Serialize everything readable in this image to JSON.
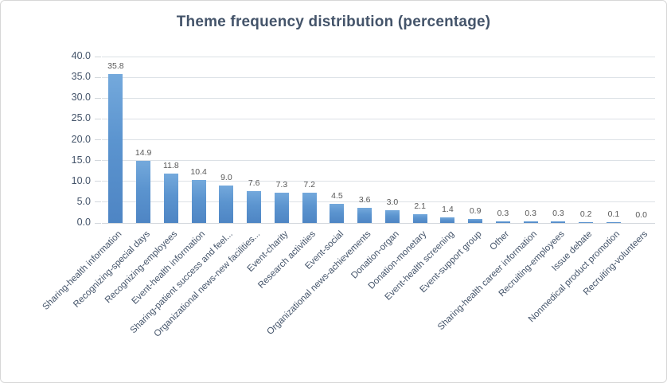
{
  "chart_data": {
    "type": "bar",
    "title": "Theme frequency distribution (percentage)",
    "xlabel": "",
    "ylabel": "",
    "ylim": [
      0,
      40
    ],
    "ytick_step": 5,
    "ytick_labels": [
      "0.0",
      "5.0",
      "10.0",
      "15.0",
      "20.0",
      "25.0",
      "30.0",
      "35.0",
      "40.0"
    ],
    "grid": true,
    "legend": "none",
    "categories": [
      "Sharing-health information",
      "Recognizing-special days",
      "Recognizing-employees",
      "Event-health information",
      "Sharing-patient success and feel...",
      "Organizational news-new facilities...",
      "Event-charity",
      "Research activities",
      "Event-social",
      "Organizational news-achievements",
      "Donation-organ",
      "Donation-monetary",
      "Event-health screening",
      "Event-support group",
      "Other",
      "Sharing-health career information",
      "Recruiting-employees",
      "Issue debate",
      "Nonmedical product promotion",
      "Recruiting-volunteers"
    ],
    "values": [
      35.8,
      14.9,
      11.8,
      10.4,
      9.0,
      7.6,
      7.3,
      7.2,
      4.5,
      3.6,
      3.0,
      2.1,
      1.4,
      0.9,
      0.3,
      0.3,
      0.3,
      0.2,
      0.1,
      0.0
    ],
    "value_labels": [
      "35.8",
      "14.9",
      "11.8",
      "10.4",
      "9.0",
      "7.6",
      "7.3",
      "7.2",
      "4.5",
      "3.6",
      "3.0",
      "2.1",
      "1.4",
      "0.9",
      "0.3",
      "0.3",
      "0.3",
      "0.2",
      "0.1",
      "0.0"
    ],
    "colors": {
      "bar_gradient_top": "#74a9dc",
      "bar_gradient_bottom": "#4e85c4",
      "title_text": "#44546A",
      "axis_text": "#44546A",
      "data_label_text": "#595959",
      "gridline": "#dce1e6",
      "figure_border": "#d7d7d7"
    }
  }
}
